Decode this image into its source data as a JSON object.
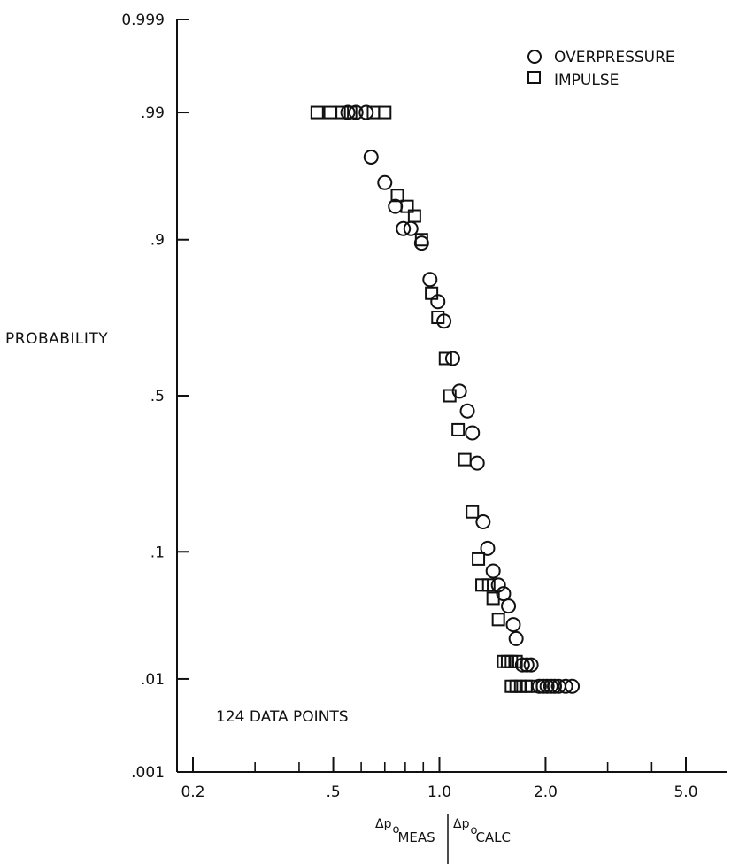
{
  "chart_data": {
    "type": "scatter",
    "title": "",
    "ylabel": "PROBABILITY",
    "xlabel": {
      "numerator_prefix": "Δp",
      "numerator_sub": "o",
      "numerator_subsub": "MEAS",
      "denominator_prefix": "Δp",
      "denominator_sub": "o",
      "denominator_subsub": "CALC"
    },
    "x_scale": "log",
    "y_scale": "probability",
    "xlim": [
      0.2,
      5.0
    ],
    "ylim": [
      0.001,
      0.999
    ],
    "x_tick_labels": [
      {
        "value": 0.2,
        "label": "0.2"
      },
      {
        "value": 0.5,
        "label": ".5"
      },
      {
        "value": 1.0,
        "label": "1.0"
      },
      {
        "value": 2.0,
        "label": "2.0"
      },
      {
        "value": 5.0,
        "label": "5.0"
      }
    ],
    "x_minor_ticks": [
      0.3,
      0.4,
      0.6,
      0.7,
      0.8,
      0.9,
      3.0,
      4.0
    ],
    "y_tick_labels": [
      {
        "value": 0.999,
        "label": "0.999"
      },
      {
        "value": 0.99,
        "label": ".99"
      },
      {
        "value": 0.9,
        "label": ".9"
      },
      {
        "value": 0.5,
        "label": ".5"
      },
      {
        "value": 0.1,
        "label": ".1"
      },
      {
        "value": 0.01,
        "label": ".01"
      },
      {
        "value": 0.001,
        "label": ".001"
      }
    ],
    "legend": {
      "position": "top-right",
      "entries": [
        {
          "name": "OVERPRESSURE",
          "marker": "circle"
        },
        {
          "name": "IMPULSE",
          "marker": "square"
        }
      ]
    },
    "annotation": "124 DATA POINTS",
    "grid": false,
    "series": [
      {
        "name": "OVERPRESSURE",
        "marker": "circle",
        "points": [
          {
            "x": 0.55,
            "y": 0.99
          },
          {
            "x": 0.58,
            "y": 0.99
          },
          {
            "x": 0.62,
            "y": 0.99
          },
          {
            "x": 0.64,
            "y": 0.975
          },
          {
            "x": 0.7,
            "y": 0.96
          },
          {
            "x": 0.75,
            "y": 0.94
          },
          {
            "x": 0.79,
            "y": 0.915
          },
          {
            "x": 0.83,
            "y": 0.915
          },
          {
            "x": 0.89,
            "y": 0.895
          },
          {
            "x": 0.94,
            "y": 0.83
          },
          {
            "x": 0.99,
            "y": 0.78
          },
          {
            "x": 1.03,
            "y": 0.73
          },
          {
            "x": 1.09,
            "y": 0.62
          },
          {
            "x": 1.14,
            "y": 0.515
          },
          {
            "x": 1.2,
            "y": 0.45
          },
          {
            "x": 1.24,
            "y": 0.38
          },
          {
            "x": 1.28,
            "y": 0.29
          },
          {
            "x": 1.33,
            "y": 0.15
          },
          {
            "x": 1.37,
            "y": 0.105
          },
          {
            "x": 1.42,
            "y": 0.075
          },
          {
            "x": 1.47,
            "y": 0.06
          },
          {
            "x": 1.52,
            "y": 0.052
          },
          {
            "x": 1.57,
            "y": 0.042
          },
          {
            "x": 1.62,
            "y": 0.03
          },
          {
            "x": 1.65,
            "y": 0.023
          },
          {
            "x": 1.72,
            "y": 0.0135
          },
          {
            "x": 1.77,
            "y": 0.0135
          },
          {
            "x": 1.82,
            "y": 0.0135
          },
          {
            "x": 1.92,
            "y": 0.0085
          },
          {
            "x": 1.97,
            "y": 0.0085
          },
          {
            "x": 2.02,
            "y": 0.0085
          },
          {
            "x": 2.07,
            "y": 0.0085
          },
          {
            "x": 2.12,
            "y": 0.0085
          },
          {
            "x": 2.18,
            "y": 0.0085
          },
          {
            "x": 2.28,
            "y": 0.0085
          },
          {
            "x": 2.38,
            "y": 0.0085
          }
        ]
      },
      {
        "name": "IMPULSE",
        "marker": "square",
        "points": [
          {
            "x": 0.45,
            "y": 0.99
          },
          {
            "x": 0.49,
            "y": 0.99
          },
          {
            "x": 0.53,
            "y": 0.99
          },
          {
            "x": 0.56,
            "y": 0.99
          },
          {
            "x": 0.65,
            "y": 0.99
          },
          {
            "x": 0.7,
            "y": 0.99
          },
          {
            "x": 0.76,
            "y": 0.95
          },
          {
            "x": 0.81,
            "y": 0.94
          },
          {
            "x": 0.85,
            "y": 0.93
          },
          {
            "x": 0.89,
            "y": 0.9
          },
          {
            "x": 0.95,
            "y": 0.8
          },
          {
            "x": 0.99,
            "y": 0.74
          },
          {
            "x": 1.04,
            "y": 0.62
          },
          {
            "x": 1.07,
            "y": 0.5
          },
          {
            "x": 1.13,
            "y": 0.39
          },
          {
            "x": 1.18,
            "y": 0.3
          },
          {
            "x": 1.24,
            "y": 0.17
          },
          {
            "x": 1.29,
            "y": 0.09
          },
          {
            "x": 1.32,
            "y": 0.06
          },
          {
            "x": 1.38,
            "y": 0.06
          },
          {
            "x": 1.42,
            "y": 0.048
          },
          {
            "x": 1.47,
            "y": 0.033
          },
          {
            "x": 1.52,
            "y": 0.0145
          },
          {
            "x": 1.56,
            "y": 0.0145
          },
          {
            "x": 1.6,
            "y": 0.0145
          },
          {
            "x": 1.65,
            "y": 0.0145
          },
          {
            "x": 1.6,
            "y": 0.0085
          },
          {
            "x": 1.65,
            "y": 0.0085
          },
          {
            "x": 1.7,
            "y": 0.0085
          },
          {
            "x": 1.76,
            "y": 0.0085
          },
          {
            "x": 1.82,
            "y": 0.0085
          }
        ]
      }
    ]
  }
}
